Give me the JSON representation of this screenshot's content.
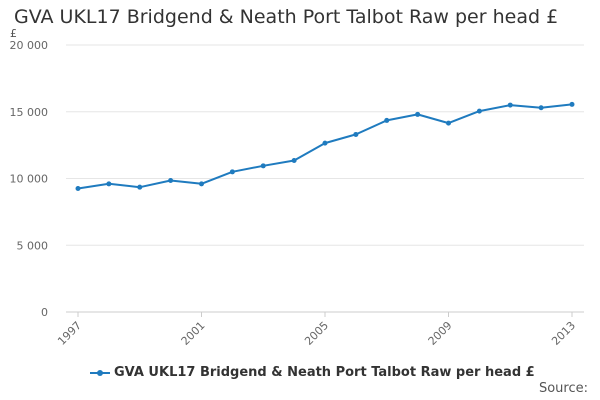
{
  "chart_data": {
    "type": "line",
    "title": "GVA UKL17 Bridgend & Neath Port Talbot Raw per head £",
    "ylabel": "£",
    "xlabel": "",
    "ylim": [
      0,
      20000
    ],
    "yticks": [
      0,
      5000,
      10000,
      15000,
      20000
    ],
    "ytick_labels": [
      "0",
      "5 000",
      "10 000",
      "15 000",
      "20 000"
    ],
    "xlim": [
      1997,
      2013
    ],
    "xticks": [
      1997,
      2001,
      2005,
      2009,
      2013
    ],
    "xtick_labels": [
      "1997",
      "2001",
      "2005",
      "2009",
      "2013"
    ],
    "grid": true,
    "legend_position": "bottom",
    "series": [
      {
        "name": "GVA UKL17 Bridgend & Neath Port Talbot Raw per head £",
        "color": "#1f7bbf",
        "x": [
          1997,
          1998,
          1999,
          2000,
          2001,
          2002,
          2003,
          2004,
          2005,
          2006,
          2007,
          2008,
          2009,
          2010,
          2011,
          2012,
          2013
        ],
        "values": [
          9250,
          9600,
          9350,
          9850,
          9600,
          10500,
          10950,
          11350,
          12650,
          13300,
          14350,
          14800,
          14150,
          15050,
          15500,
          15300,
          15550
        ]
      }
    ]
  },
  "source_label": "Source:"
}
